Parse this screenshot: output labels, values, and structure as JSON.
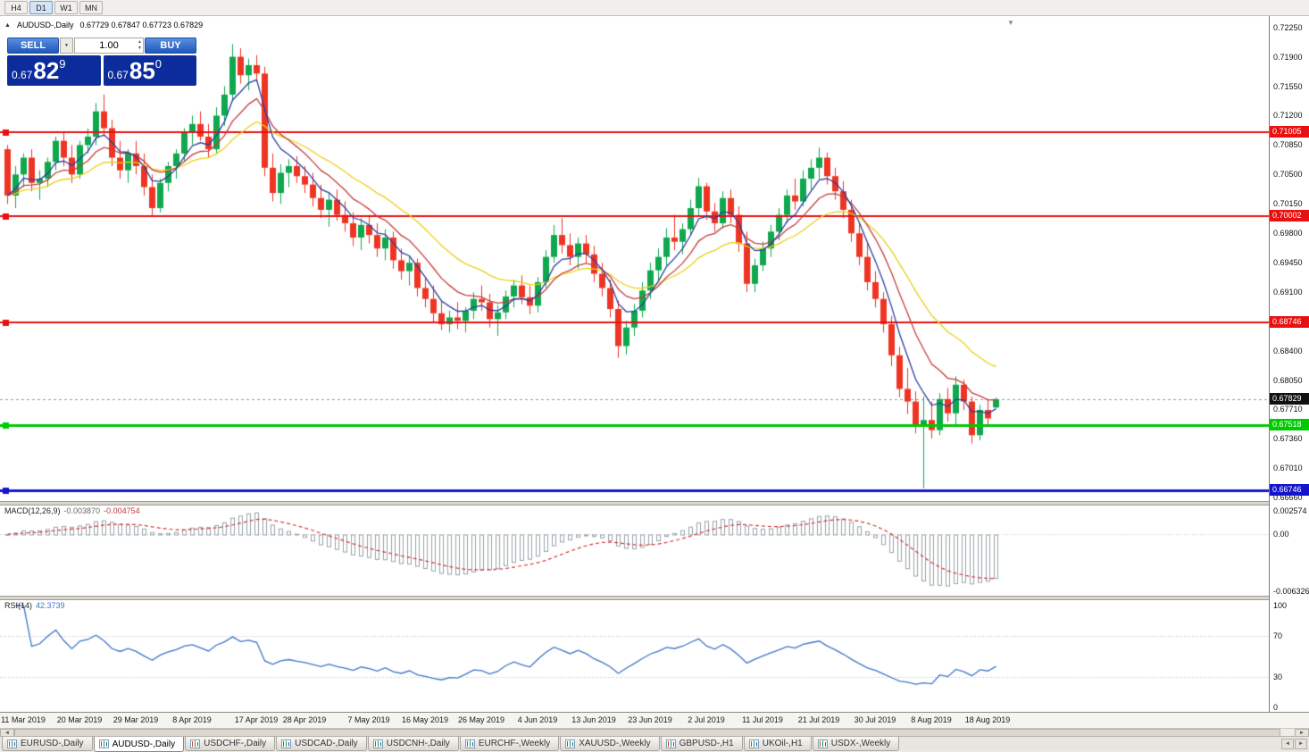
{
  "toolbar": {
    "timeframes": [
      {
        "label": "H4",
        "active": false
      },
      {
        "label": "D1",
        "active": true
      },
      {
        "label": "W1",
        "active": false
      },
      {
        "label": "MN",
        "active": false
      }
    ]
  },
  "chart_header": {
    "collapse_icon": "▲",
    "symbol_title": "AUDUSD-,Daily",
    "ohlc": "0.67729 0.67847 0.67723 0.67829",
    "shift_marker_icon": "▼"
  },
  "one_click": {
    "sell_label": "SELL",
    "buy_label": "BUY",
    "volume": "1.00",
    "dropdown_icon": "▼",
    "spin_up_icon": "▲",
    "spin_down_icon": "▼",
    "sell_price": {
      "base": "0.67",
      "big": "82",
      "sup": "9"
    },
    "buy_price": {
      "base": "0.67",
      "big": "85",
      "sup": "0"
    }
  },
  "macd_panel": {
    "name": "MACD(12,26,9)",
    "main_value": "-0.003870",
    "signal_value": "-0.004754",
    "scale": [
      {
        "label": "0.002574",
        "value": 0.002574
      },
      {
        "label": "0.00",
        "value": 0
      },
      {
        "label": "-0.006326",
        "value": -0.006326
      }
    ]
  },
  "rsi_panel": {
    "name": "RSI(14)",
    "value": "42.3739",
    "scale": [
      {
        "label": "100",
        "value": 100
      },
      {
        "label": "70",
        "value": 70
      },
      {
        "label": "30",
        "value": 30
      },
      {
        "label": "0",
        "value": 0
      }
    ]
  },
  "scrollbar": {
    "left_icon": "◄",
    "right_icon": "►"
  },
  "tab_bar": {
    "scroll_left_icon": "◄",
    "scroll_right_icon": "►",
    "tabs": [
      {
        "label": "EURUSD-,Daily",
        "active": false
      },
      {
        "label": "AUDUSD-,Daily",
        "active": true
      },
      {
        "label": "USDCHF-,Daily",
        "active": false
      },
      {
        "label": "USDCAD-,Daily",
        "active": false
      },
      {
        "label": "USDCNH-,Daily",
        "active": false
      },
      {
        "label": "EURCHF-,Weekly",
        "active": false
      },
      {
        "label": "XAUUSD-,Weekly",
        "active": false
      },
      {
        "label": "GBPUSD-,H1",
        "active": false
      },
      {
        "label": "UKOil-,H1",
        "active": false
      },
      {
        "label": "USDX-,Weekly",
        "active": false
      }
    ]
  },
  "chart_data": {
    "type": "candlestick",
    "symbol": "AUDUSD-",
    "timeframe": "Daily",
    "title": "AUDUSD-,Daily",
    "ohlc_display": {
      "open": 0.67729,
      "high": 0.67847,
      "low": 0.67723,
      "close": 0.67829
    },
    "price_range": {
      "max": 0.7232,
      "min": 0.6667
    },
    "price_axis_ticks": [
      0.7225,
      0.719,
      0.7155,
      0.712,
      0.7085,
      0.705,
      0.7015,
      0.698,
      0.6945,
      0.691,
      0.6875,
      0.684,
      0.6805,
      0.6771,
      0.6736,
      0.6701,
      0.6666
    ],
    "x_tick_labels": [
      "11 Mar 2019",
      "20 Mar 2019",
      "29 Mar 2019",
      "8 Apr 2019",
      "17 Apr 2019",
      "28 Apr 2019",
      "7 May 2019",
      "16 May 2019",
      "26 May 2019",
      "4 Jun 2019",
      "13 Jun 2019",
      "23 Jun 2019",
      "2 Jul 2019",
      "11 Jul 2019",
      "21 Jul 2019",
      "30 Jul 2019",
      "8 Aug 2019",
      "18 Aug 2019"
    ],
    "x_tick_indices": [
      2,
      9,
      16,
      23,
      31,
      37,
      45,
      52,
      59,
      66,
      73,
      80,
      87,
      94,
      101,
      108,
      115,
      122
    ],
    "current_price": {
      "value": 0.67829,
      "label": "0.67829"
    },
    "h_lines": [
      {
        "price": 0.71005,
        "label": "0.71005",
        "color": "#e81010",
        "width": 2
      },
      {
        "price": 0.70002,
        "label": "0.70002",
        "color": "#e81010",
        "width": 2
      },
      {
        "price": 0.68746,
        "label": "0.68746",
        "color": "#e81010",
        "width": 2
      },
      {
        "price": 0.67518,
        "label": "0.67518",
        "color": "#00ca00",
        "width": 3
      },
      {
        "price": 0.66746,
        "label": "0.66746",
        "color": "#1414cd",
        "width": 3
      }
    ],
    "moving_averages": [
      {
        "period": 5,
        "method": "ema",
        "color": "#2c3e9f"
      },
      {
        "period": 10,
        "method": "ema",
        "color": "#c63d3d"
      },
      {
        "period": 20,
        "method": "ema",
        "color": "#e8d019"
      }
    ],
    "macd": {
      "fast": 12,
      "slow": 26,
      "signal": 9,
      "scale_max": 0.002574,
      "scale_min": -0.006326
    },
    "rsi": {
      "period": 14,
      "levels": [
        70,
        30
      ]
    },
    "colors": {
      "bull": "#0fa84e",
      "bear": "#ee3524",
      "macd_hist": "#98a2aa",
      "macd_signal": "#cf3737",
      "rsi_line": "#3f74c9",
      "current_line": "#9a9a9a"
    },
    "candles": [
      [
        0.708,
        0.7085,
        0.7015,
        0.7025
      ],
      [
        0.7025,
        0.706,
        0.701,
        0.705
      ],
      [
        0.705,
        0.7075,
        0.7035,
        0.707
      ],
      [
        0.707,
        0.708,
        0.703,
        0.704
      ],
      [
        0.704,
        0.7055,
        0.702,
        0.7045
      ],
      [
        0.7045,
        0.707,
        0.7035,
        0.7065
      ],
      [
        0.7065,
        0.7095,
        0.7055,
        0.709
      ],
      [
        0.709,
        0.71,
        0.706,
        0.707
      ],
      [
        0.707,
        0.7085,
        0.704,
        0.705
      ],
      [
        0.705,
        0.709,
        0.7045,
        0.7085
      ],
      [
        0.7085,
        0.7105,
        0.7075,
        0.7095
      ],
      [
        0.7095,
        0.7135,
        0.7085,
        0.7125
      ],
      [
        0.7125,
        0.7145,
        0.7095,
        0.7105
      ],
      [
        0.7105,
        0.7115,
        0.706,
        0.707
      ],
      [
        0.707,
        0.709,
        0.7045,
        0.7055
      ],
      [
        0.7055,
        0.708,
        0.704,
        0.7075
      ],
      [
        0.7075,
        0.709,
        0.705,
        0.706
      ],
      [
        0.706,
        0.7075,
        0.7025,
        0.7035
      ],
      [
        0.7035,
        0.705,
        0.7,
        0.701
      ],
      [
        0.701,
        0.7045,
        0.7005,
        0.704
      ],
      [
        0.704,
        0.7065,
        0.703,
        0.706
      ],
      [
        0.706,
        0.708,
        0.7045,
        0.7075
      ],
      [
        0.7075,
        0.7105,
        0.7065,
        0.71
      ],
      [
        0.71,
        0.712,
        0.7085,
        0.711
      ],
      [
        0.711,
        0.7125,
        0.709,
        0.7095
      ],
      [
        0.7095,
        0.711,
        0.707,
        0.708
      ],
      [
        0.708,
        0.713,
        0.7075,
        0.712
      ],
      [
        0.712,
        0.7155,
        0.7108,
        0.7145
      ],
      [
        0.7145,
        0.7205,
        0.7138,
        0.719
      ],
      [
        0.719,
        0.72,
        0.7158,
        0.7168
      ],
      [
        0.7168,
        0.7188,
        0.715,
        0.718
      ],
      [
        0.718,
        0.7192,
        0.716,
        0.717
      ],
      [
        0.717,
        0.7178,
        0.7048,
        0.7058
      ],
      [
        0.7058,
        0.7075,
        0.7018,
        0.7028
      ],
      [
        0.7028,
        0.7062,
        0.7015,
        0.7052
      ],
      [
        0.7052,
        0.7068,
        0.7035,
        0.706
      ],
      [
        0.706,
        0.7072,
        0.704,
        0.7048
      ],
      [
        0.7048,
        0.706,
        0.7028,
        0.7038
      ],
      [
        0.7038,
        0.7052,
        0.7012,
        0.7022
      ],
      [
        0.7022,
        0.7038,
        0.6998,
        0.7008
      ],
      [
        0.7008,
        0.7028,
        0.6988,
        0.702
      ],
      [
        0.702,
        0.7032,
        0.6995,
        0.7002
      ],
      [
        0.7002,
        0.7018,
        0.6982,
        0.6992
      ],
      [
        0.6992,
        0.7005,
        0.6965,
        0.6975
      ],
      [
        0.6975,
        0.6998,
        0.696,
        0.699
      ],
      [
        0.699,
        0.7002,
        0.6968,
        0.6978
      ],
      [
        0.6978,
        0.6992,
        0.6952,
        0.6962
      ],
      [
        0.6962,
        0.6985,
        0.6948,
        0.6975
      ],
      [
        0.6975,
        0.6982,
        0.6938,
        0.6948
      ],
      [
        0.6948,
        0.6962,
        0.6925,
        0.6935
      ],
      [
        0.6935,
        0.6952,
        0.6918,
        0.6945
      ],
      [
        0.6945,
        0.695,
        0.6905,
        0.6915
      ],
      [
        0.6915,
        0.6928,
        0.6892,
        0.6902
      ],
      [
        0.6902,
        0.6918,
        0.6875,
        0.6885
      ],
      [
        0.6885,
        0.69,
        0.6865,
        0.6872
      ],
      [
        0.6872,
        0.6888,
        0.6862,
        0.688
      ],
      [
        0.688,
        0.6898,
        0.6866,
        0.6876
      ],
      [
        0.6876,
        0.6892,
        0.6862,
        0.6888
      ],
      [
        0.6888,
        0.691,
        0.6878,
        0.6902
      ],
      [
        0.6902,
        0.6918,
        0.6888,
        0.6898
      ],
      [
        0.6898,
        0.6908,
        0.6868,
        0.6878
      ],
      [
        0.6878,
        0.6895,
        0.6858,
        0.6886
      ],
      [
        0.6886,
        0.6912,
        0.6878,
        0.6905
      ],
      [
        0.6905,
        0.6925,
        0.6892,
        0.6918
      ],
      [
        0.6918,
        0.693,
        0.6896,
        0.6904
      ],
      [
        0.6904,
        0.6918,
        0.6884,
        0.6894
      ],
      [
        0.6894,
        0.6928,
        0.6886,
        0.6922
      ],
      [
        0.6922,
        0.696,
        0.6915,
        0.6952
      ],
      [
        0.6952,
        0.699,
        0.6945,
        0.6978
      ],
      [
        0.6978,
        0.6998,
        0.6956,
        0.6966
      ],
      [
        0.6966,
        0.698,
        0.6942,
        0.6952
      ],
      [
        0.6952,
        0.6975,
        0.6938,
        0.6968
      ],
      [
        0.6968,
        0.6978,
        0.6945,
        0.6955
      ],
      [
        0.6955,
        0.6965,
        0.6922,
        0.6932
      ],
      [
        0.6932,
        0.6945,
        0.6905,
        0.6915
      ],
      [
        0.6915,
        0.6925,
        0.688,
        0.689
      ],
      [
        0.689,
        0.69,
        0.6832,
        0.6846
      ],
      [
        0.6846,
        0.6876,
        0.6836,
        0.6868
      ],
      [
        0.6868,
        0.6896,
        0.6858,
        0.6888
      ],
      [
        0.6888,
        0.6922,
        0.688,
        0.6912
      ],
      [
        0.6912,
        0.6945,
        0.6902,
        0.6936
      ],
      [
        0.6936,
        0.6962,
        0.6922,
        0.6952
      ],
      [
        0.6952,
        0.6986,
        0.6942,
        0.6975
      ],
      [
        0.6975,
        0.7002,
        0.696,
        0.697
      ],
      [
        0.697,
        0.6992,
        0.6955,
        0.6985
      ],
      [
        0.6985,
        0.702,
        0.6978,
        0.701
      ],
      [
        0.701,
        0.7046,
        0.7,
        0.7036
      ],
      [
        0.7036,
        0.704,
        0.6996,
        0.7006
      ],
      [
        0.7006,
        0.7016,
        0.6982,
        0.6992
      ],
      [
        0.6992,
        0.703,
        0.6986,
        0.7022
      ],
      [
        0.7022,
        0.7032,
        0.6992,
        0.7002
      ],
      [
        0.7002,
        0.7012,
        0.6958,
        0.6968
      ],
      [
        0.6968,
        0.6982,
        0.691,
        0.692
      ],
      [
        0.692,
        0.695,
        0.691,
        0.6942
      ],
      [
        0.6942,
        0.697,
        0.6935,
        0.6962
      ],
      [
        0.6962,
        0.699,
        0.6952,
        0.6982
      ],
      [
        0.6982,
        0.701,
        0.6972,
        0.7002
      ],
      [
        0.7002,
        0.7032,
        0.6992,
        0.7025
      ],
      [
        0.7025,
        0.7045,
        0.7008,
        0.7018
      ],
      [
        0.7018,
        0.7055,
        0.7012,
        0.7045
      ],
      [
        0.7045,
        0.7068,
        0.7032,
        0.7058
      ],
      [
        0.7058,
        0.7082,
        0.7045,
        0.707
      ],
      [
        0.707,
        0.7076,
        0.7038,
        0.7048
      ],
      [
        0.7048,
        0.7058,
        0.702,
        0.703
      ],
      [
        0.703,
        0.7042,
        0.6998,
        0.7008
      ],
      [
        0.7008,
        0.702,
        0.697,
        0.698
      ],
      [
        0.698,
        0.6992,
        0.6942,
        0.6952
      ],
      [
        0.6952,
        0.6968,
        0.6912,
        0.6922
      ],
      [
        0.6922,
        0.6935,
        0.6892,
        0.6902
      ],
      [
        0.6902,
        0.691,
        0.6862,
        0.6872
      ],
      [
        0.6872,
        0.6882,
        0.6822,
        0.6835
      ],
      [
        0.6835,
        0.6845,
        0.6785,
        0.6795
      ],
      [
        0.6795,
        0.682,
        0.6765,
        0.678
      ],
      [
        0.678,
        0.6792,
        0.6742,
        0.6752
      ],
      [
        0.6752,
        0.6786,
        0.6677,
        0.6758
      ],
      [
        0.6758,
        0.678,
        0.6736,
        0.6746
      ],
      [
        0.6746,
        0.679,
        0.674,
        0.6783
      ],
      [
        0.6783,
        0.6796,
        0.6756,
        0.6766
      ],
      [
        0.6766,
        0.681,
        0.6753,
        0.68
      ],
      [
        0.68,
        0.6806,
        0.677,
        0.678
      ],
      [
        0.678,
        0.6786,
        0.673,
        0.674
      ],
      [
        0.674,
        0.6776,
        0.6734,
        0.677
      ],
      [
        0.677,
        0.6783,
        0.675,
        0.676
      ],
      [
        0.67729,
        0.67847,
        0.67723,
        0.67829
      ]
    ]
  }
}
